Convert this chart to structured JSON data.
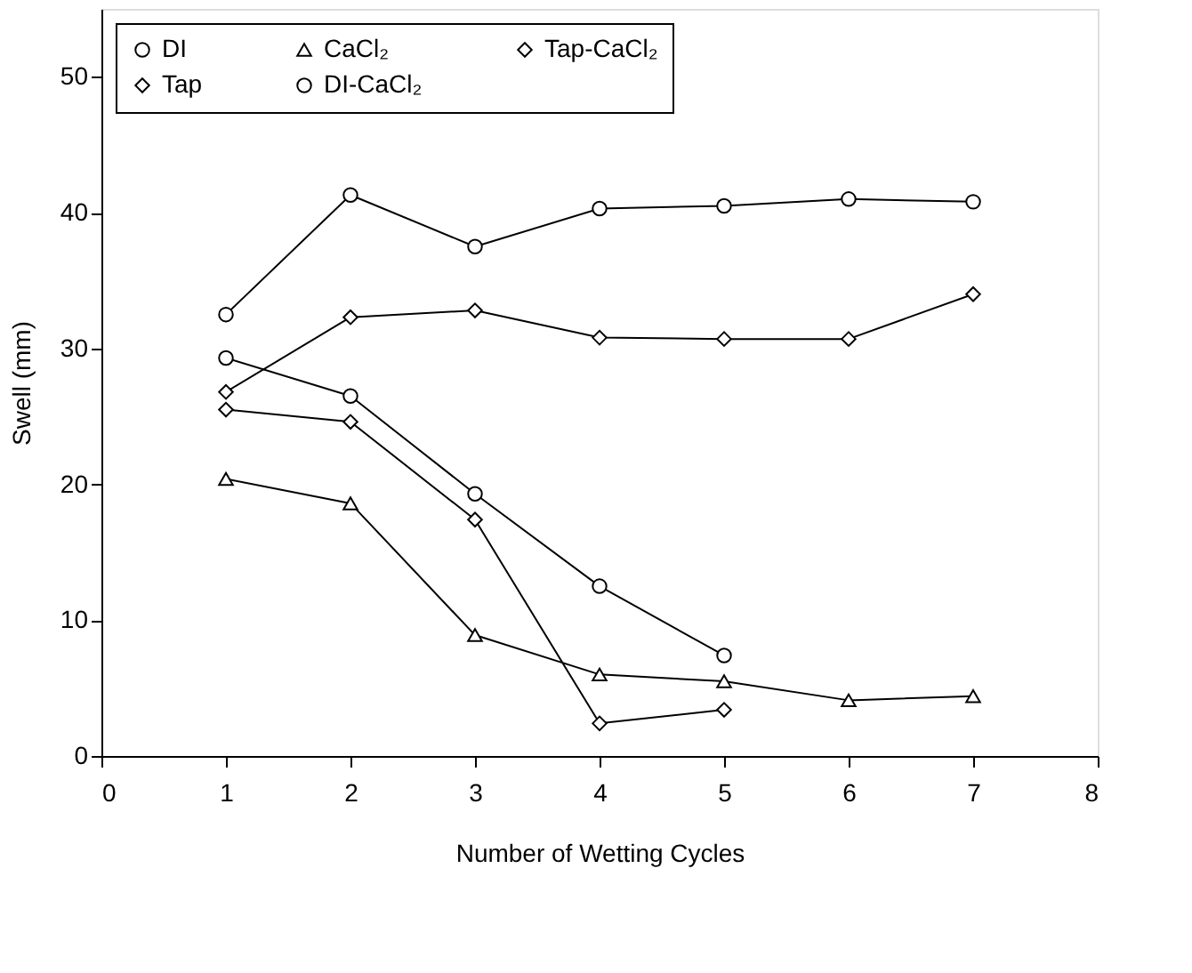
{
  "chart_data": {
    "type": "line",
    "xlabel": "Number of Wetting Cycles",
    "ylabel": "Swell (mm)",
    "xlim": [
      0,
      8
    ],
    "xticks": [
      0,
      1,
      2,
      3,
      4,
      5,
      6,
      7,
      8
    ],
    "ylim": [
      0,
      55
    ],
    "yticks": [
      0,
      10,
      20,
      30,
      40,
      50
    ],
    "grid": false,
    "legend": "top",
    "line_style": "solid",
    "series": [
      {
        "name": "DI",
        "color": "#000000",
        "marker": "circle",
        "x": [
          1,
          2,
          3,
          4,
          5,
          6,
          7
        ],
        "values": [
          32.5,
          41.3,
          37.5,
          40.3,
          40.5,
          41.0,
          40.8
        ]
      },
      {
        "name": "Tap",
        "color": "#000000",
        "marker": "diamond",
        "x": [
          1,
          2,
          3,
          4,
          5,
          6,
          7
        ],
        "values": [
          26.8,
          32.3,
          32.8,
          30.8,
          30.7,
          30.7,
          34.0
        ]
      },
      {
        "name": "CaCl₂",
        "color": "#000000",
        "marker": "triangle",
        "x": [
          1,
          2,
          3,
          4,
          5,
          6,
          7
        ],
        "values": [
          20.4,
          18.6,
          8.9,
          6.0,
          5.5,
          4.1,
          4.4
        ]
      },
      {
        "name": "DI-CaCl₂",
        "color": "#000000",
        "marker": "circle",
        "x": [
          1,
          2,
          3,
          4,
          5
        ],
        "values": [
          29.3,
          26.5,
          19.3,
          12.5,
          7.4
        ]
      },
      {
        "name": "Tap-CaCl₂",
        "color": "#000000",
        "marker": "diamond",
        "x": [
          1,
          2,
          3,
          4,
          5
        ],
        "values": [
          25.5,
          24.6,
          17.4,
          2.4,
          3.4
        ]
      }
    ]
  }
}
